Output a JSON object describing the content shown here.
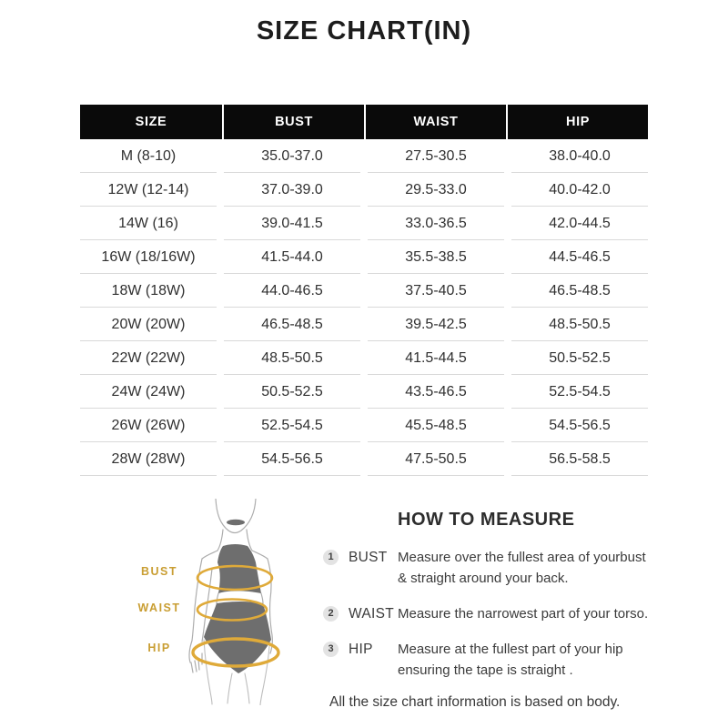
{
  "title": "SIZE CHART(IN)",
  "table": {
    "headers": [
      "SIZE",
      "BUST",
      "WAIST",
      "HIP"
    ],
    "rows": [
      [
        "M (8-10)",
        "35.0-37.0",
        "27.5-30.5",
        "38.0-40.0"
      ],
      [
        "12W (12-14)",
        "37.0-39.0",
        "29.5-33.0",
        "40.0-42.0"
      ],
      [
        "14W (16)",
        "39.0-41.5",
        "33.0-36.5",
        "42.0-44.5"
      ],
      [
        "16W (18/16W)",
        "41.5-44.0",
        "35.5-38.5",
        "44.5-46.5"
      ],
      [
        "18W (18W)",
        "44.0-46.5",
        "37.5-40.5",
        "46.5-48.5"
      ],
      [
        "20W (20W)",
        "46.5-48.5",
        "39.5-42.5",
        "48.5-50.5"
      ],
      [
        "22W (22W)",
        "48.5-50.5",
        "41.5-44.5",
        "50.5-52.5"
      ],
      [
        "24W (24W)",
        "50.5-52.5",
        "43.5-46.5",
        "52.5-54.5"
      ],
      [
        "26W (26W)",
        "52.5-54.5",
        "45.5-48.5",
        "54.5-56.5"
      ],
      [
        "28W (28W)",
        "54.5-56.5",
        "47.5-50.5",
        "56.5-58.5"
      ]
    ]
  },
  "figure": {
    "bust_label": "BUST",
    "waist_label": "WAIST",
    "hip_label": "HIP",
    "label_color": "#C99E33",
    "tape_color": "#DFAA39",
    "garment_color": "#6E6E6E",
    "outline_color": "#ADADAD",
    "leg_line_color": "#BDBDBD"
  },
  "colors": {
    "table_header_bg": "#0A0A0A",
    "table_header_text": "#FFFFFF",
    "row_divider": "#D9D9D9"
  },
  "how_to_measure": {
    "heading": "HOW TO MEASURE",
    "items": [
      {
        "num": "1",
        "label": "BUST",
        "text": "Measure over the fullest area of yourbust\n& straight around your back."
      },
      {
        "num": "2",
        "label": "WAIST",
        "text": "Measure the narrowest part of your torso."
      },
      {
        "num": "3",
        "label": "HIP",
        "text": "Measure at the fullest part of your hip\nensuring the tape is straight ."
      }
    ]
  },
  "footer": "All the size chart information is based on body."
}
